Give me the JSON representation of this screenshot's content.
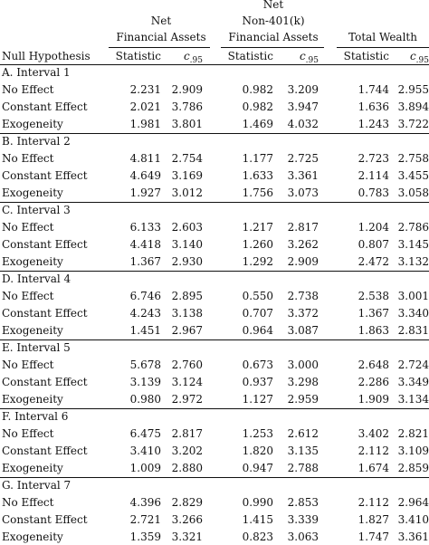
{
  "headers": {
    "null_hypothesis": "Null Hypothesis",
    "group1_line1": "Net",
    "group1_line2": "Financial Assets",
    "group2_line1": "Net",
    "group2_line2": "Non-401(k)",
    "group2_line3": "Financial Assets",
    "group3_line1": "Total Wealth",
    "statistic": "Statistic",
    "crit_main": "c",
    "crit_sub": ".95"
  },
  "sections": [
    {
      "title": "A. Interval 1",
      "rows": [
        {
          "label": "No Effect",
          "values": [
            "2.231",
            "2.909",
            "0.982",
            "3.209",
            "1.744",
            "2.955"
          ]
        },
        {
          "label": "Constant Effect",
          "values": [
            "2.021",
            "3.786",
            "0.982",
            "3.947",
            "1.636",
            "3.894"
          ]
        },
        {
          "label": "Exogeneity",
          "values": [
            "1.981",
            "3.801",
            "1.469",
            "4.032",
            "1.243",
            "3.722"
          ]
        }
      ]
    },
    {
      "title": "B. Interval 2",
      "rows": [
        {
          "label": "No Effect",
          "values": [
            "4.811",
            "2.754",
            "1.177",
            "2.725",
            "2.723",
            "2.758"
          ]
        },
        {
          "label": "Constant Effect",
          "values": [
            "4.649",
            "3.169",
            "1.633",
            "3.361",
            "2.114",
            "3.455"
          ]
        },
        {
          "label": "Exogeneity",
          "values": [
            "1.927",
            "3.012",
            "1.756",
            "3.073",
            "0.783",
            "3.058"
          ]
        }
      ]
    },
    {
      "title": "C. Interval 3",
      "rows": [
        {
          "label": "No Effect",
          "values": [
            "6.133",
            "2.603",
            "1.217",
            "2.817",
            "1.204",
            "2.786"
          ]
        },
        {
          "label": "Constant Effect",
          "values": [
            "4.418",
            "3.140",
            "1.260",
            "3.262",
            "0.807",
            "3.145"
          ]
        },
        {
          "label": "Exogeneity",
          "values": [
            "1.367",
            "2.930",
            "1.292",
            "2.909",
            "2.472",
            "3.132"
          ]
        }
      ]
    },
    {
      "title": "D. Interval 4",
      "rows": [
        {
          "label": "No Effect",
          "values": [
            "6.746",
            "2.895",
            "0.550",
            "2.738",
            "2.538",
            "3.001"
          ]
        },
        {
          "label": "Constant Effect",
          "values": [
            "4.243",
            "3.138",
            "0.707",
            "3.372",
            "1.367",
            "3.340"
          ]
        },
        {
          "label": "Exogeneity",
          "values": [
            "1.451",
            "2.967",
            "0.964",
            "3.087",
            "1.863",
            "2.831"
          ]
        }
      ]
    },
    {
      "title": "E. Interval 5",
      "rows": [
        {
          "label": "No Effect",
          "values": [
            "5.678",
            "2.760",
            "0.673",
            "3.000",
            "2.648",
            "2.724"
          ]
        },
        {
          "label": "Constant Effect",
          "values": [
            "3.139",
            "3.124",
            "0.937",
            "3.298",
            "2.286",
            "3.349"
          ]
        },
        {
          "label": "Exogeneity",
          "values": [
            "0.980",
            "2.972",
            "1.127",
            "2.959",
            "1.909",
            "3.134"
          ]
        }
      ]
    },
    {
      "title": "F. Interval 6",
      "rows": [
        {
          "label": "No Effect",
          "values": [
            "6.475",
            "2.817",
            "1.253",
            "2.612",
            "3.402",
            "2.821"
          ]
        },
        {
          "label": "Constant Effect",
          "values": [
            "3.410",
            "3.202",
            "1.820",
            "3.135",
            "2.112",
            "3.109"
          ]
        },
        {
          "label": "Exogeneity",
          "values": [
            "1.009",
            "2.880",
            "0.947",
            "2.788",
            "1.674",
            "2.859"
          ]
        }
      ]
    },
    {
      "title": "G. Interval 7",
      "rows": [
        {
          "label": "No Effect",
          "values": [
            "4.396",
            "2.829",
            "0.990",
            "2.853",
            "2.112",
            "2.964"
          ]
        },
        {
          "label": "Constant Effect",
          "values": [
            "2.721",
            "3.266",
            "1.415",
            "3.339",
            "1.827",
            "3.410"
          ]
        },
        {
          "label": "Exogeneity",
          "values": [
            "1.359",
            "3.321",
            "0.823",
            "3.063",
            "1.747",
            "3.361"
          ]
        }
      ]
    }
  ]
}
